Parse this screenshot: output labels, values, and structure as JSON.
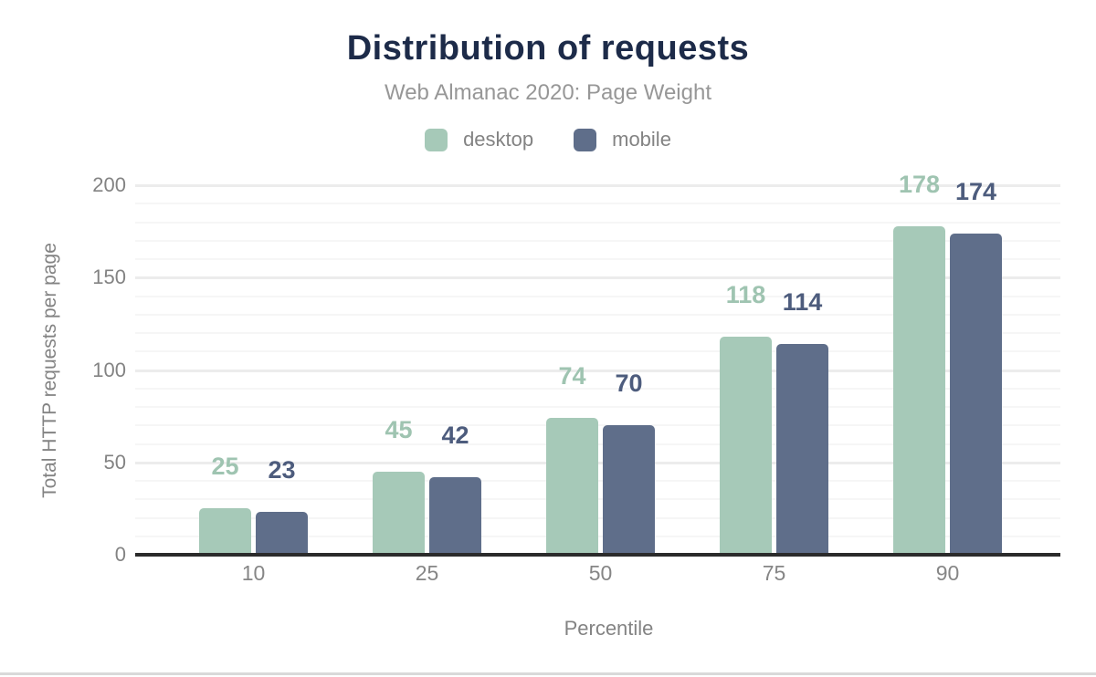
{
  "chart_data": {
    "type": "bar",
    "title": "Distribution of requests",
    "subtitle": "Web Almanac 2020: Page Weight",
    "xlabel": "Percentile",
    "ylabel": "Total HTTP requests per page",
    "categories": [
      "10",
      "25",
      "50",
      "75",
      "90"
    ],
    "series": [
      {
        "name": "desktop",
        "values": [
          25,
          45,
          74,
          118,
          178
        ],
        "color": "#a6c9b8",
        "label_color": "#9fc4b1"
      },
      {
        "name": "mobile",
        "values": [
          23,
          42,
          70,
          114,
          174
        ],
        "color": "#5f6e8a",
        "label_color": "#4d5c7d"
      }
    ],
    "ylim": [
      0,
      200
    ],
    "yticks": [
      0,
      50,
      100,
      150,
      200
    ],
    "minor_grid_step": 10,
    "major_grid_step": 50,
    "grid": true,
    "legend_position": "top"
  },
  "colors": {
    "title": "#1d2b49",
    "subtitle": "#979797",
    "axis_text": "#838383",
    "tick_text": "#868686",
    "axis_line": "#2b2b2b",
    "grid_minor": "#f6f6f6",
    "grid_major": "#ececec",
    "bottom_edge": "#d9d9d9"
  }
}
